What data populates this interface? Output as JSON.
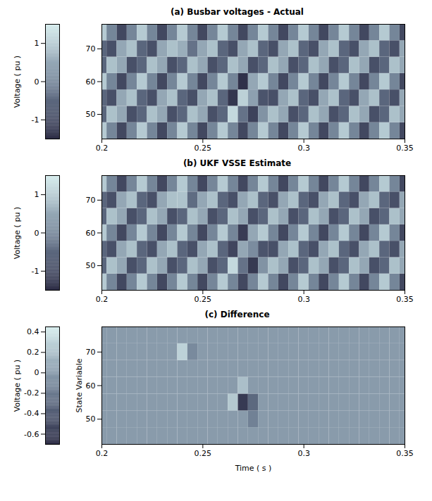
{
  "chart_data": [
    {
      "type": "heatmap",
      "title": "(a) Busbar voltages - Actual",
      "x": [
        0.2,
        0.205,
        0.21,
        0.215,
        0.22,
        0.225,
        0.23,
        0.235,
        0.24,
        0.245,
        0.25,
        0.255,
        0.26,
        0.265,
        0.27,
        0.275,
        0.28,
        0.285,
        0.29,
        0.295,
        0.3,
        0.305,
        0.31,
        0.315,
        0.32,
        0.325,
        0.33,
        0.335,
        0.34,
        0.345,
        0.35
      ],
      "y": [
        45,
        50,
        55,
        60,
        65,
        70,
        75
      ],
      "values": [
        [
          1,
          0,
          -1,
          0,
          1,
          0,
          -1,
          0,
          1,
          0,
          -1,
          0,
          1,
          0,
          -1,
          0,
          1,
          0,
          -1,
          0,
          1,
          0,
          -1,
          0,
          1,
          0,
          -1,
          0,
          1,
          0,
          -1
        ],
        [
          -0.5,
          0.87,
          0.5,
          -0.87,
          -0.5,
          0.87,
          0.5,
          -0.87,
          -0.5,
          0.87,
          0.5,
          -0.87,
          -0.5,
          1.2,
          -0.3,
          -1.1,
          0.2,
          0.87,
          0.5,
          -0.87,
          -0.5,
          0.87,
          0.5,
          -0.87,
          -0.5,
          0.87,
          0.5,
          -0.87,
          -0.5,
          0.87,
          0.5
        ],
        [
          -0.5,
          -0.87,
          0.5,
          0.87,
          -0.5,
          -0.87,
          0.5,
          0.87,
          -0.5,
          -0.87,
          0.5,
          0.87,
          -0.5,
          -1.3,
          1.1,
          0.4,
          -0.8,
          -0.87,
          0.5,
          0.87,
          -0.5,
          -0.87,
          0.5,
          0.87,
          -0.5,
          -0.87,
          0.5,
          0.87,
          -0.5,
          -0.87,
          0.5
        ],
        [
          1,
          0,
          -1,
          0,
          1,
          0,
          -1,
          0,
          1,
          0,
          -1,
          0,
          1,
          0,
          -1.4,
          0.5,
          1,
          0,
          -1,
          0,
          1,
          0,
          -1,
          0,
          1,
          0,
          -1,
          0,
          1,
          0,
          -1
        ],
        [
          -0.5,
          0.87,
          0.5,
          -0.87,
          -0.5,
          0.87,
          0.5,
          -0.87,
          -0.5,
          0.87,
          0.5,
          -0.87,
          -0.5,
          0.87,
          0.5,
          -0.87,
          -0.5,
          0.87,
          0.5,
          -0.87,
          -0.5,
          0.87,
          0.5,
          -0.87,
          -0.5,
          0.87,
          0.5,
          -0.87,
          -0.5,
          0.87,
          0.5
        ],
        [
          -0.5,
          -0.87,
          0.5,
          0.87,
          -0.5,
          -0.87,
          0.5,
          0.87,
          0.6,
          -0.3,
          0.5,
          0.87,
          -0.5,
          -0.87,
          0.5,
          0.87,
          -0.5,
          -0.87,
          0.5,
          0.87,
          -0.5,
          -0.87,
          0.5,
          0.87,
          -0.5,
          -0.87,
          0.5,
          0.87,
          -0.5,
          -0.87,
          0.5
        ],
        [
          1,
          0,
          -1,
          0,
          1,
          0,
          -1,
          0,
          1,
          0,
          -1,
          0,
          1,
          0,
          -1,
          0,
          1,
          0,
          -1,
          0,
          1,
          0,
          -1,
          0,
          1,
          0,
          -1,
          0,
          1,
          0,
          -1
        ]
      ],
      "xlim": [
        0.2,
        0.35
      ],
      "xticks": [
        0.2,
        0.25,
        0.3,
        0.35
      ],
      "ylim": [
        42.5,
        77.5
      ],
      "yticks": [
        50,
        60,
        70
      ],
      "colorbar": {
        "label": "Voltage ( pu )",
        "range": [
          -1.5,
          1.5
        ],
        "ticks": [
          -1,
          0,
          1
        ]
      }
    },
    {
      "type": "heatmap",
      "title": "(b) UKF VSSE Estimate",
      "x": [
        0.2,
        0.205,
        0.21,
        0.215,
        0.22,
        0.225,
        0.23,
        0.235,
        0.24,
        0.245,
        0.25,
        0.255,
        0.26,
        0.265,
        0.27,
        0.275,
        0.28,
        0.285,
        0.29,
        0.295,
        0.3,
        0.305,
        0.31,
        0.315,
        0.32,
        0.325,
        0.33,
        0.335,
        0.34,
        0.345,
        0.35
      ],
      "y": [
        45,
        50,
        55,
        60,
        65,
        70,
        75
      ],
      "values": [
        [
          1,
          0,
          -1,
          0,
          1,
          0,
          -1,
          0,
          1,
          0,
          -1,
          0,
          1,
          0,
          -1,
          0,
          1,
          0,
          -1,
          0,
          1,
          0,
          -1,
          0,
          1,
          0,
          -1,
          0,
          1,
          0,
          -1
        ],
        [
          -0.5,
          0.87,
          0.5,
          -0.87,
          -0.5,
          0.87,
          0.5,
          -0.87,
          -0.5,
          0.87,
          0.5,
          -0.87,
          -0.5,
          1.2,
          -0.3,
          -1.25,
          0.2,
          0.87,
          0.5,
          -0.87,
          -0.5,
          0.87,
          0.5,
          -0.87,
          -0.5,
          0.87,
          0.5,
          -0.87,
          -0.5,
          0.87,
          0.5
        ],
        [
          -0.5,
          -0.87,
          0.5,
          0.87,
          -0.5,
          -0.87,
          0.5,
          0.87,
          -0.5,
          -0.87,
          0.5,
          0.87,
          -0.5,
          -1.05,
          0.5,
          0.1,
          -0.8,
          -0.87,
          0.5,
          0.87,
          -0.5,
          -0.87,
          0.5,
          0.87,
          -0.5,
          -0.87,
          0.5,
          0.87,
          -0.5,
          -0.87,
          0.5
        ],
        [
          1,
          0,
          -1,
          0,
          1,
          0,
          -1,
          0,
          1,
          0,
          -1,
          0,
          1,
          0,
          -1.2,
          0.5,
          1,
          0,
          -1,
          0,
          1,
          0,
          -1,
          0,
          1,
          0,
          -1,
          0,
          1,
          0,
          -1
        ],
        [
          -0.5,
          0.87,
          0.5,
          -0.87,
          -0.5,
          0.87,
          0.5,
          -0.87,
          -0.5,
          0.87,
          0.5,
          -0.87,
          -0.5,
          0.87,
          0.5,
          -0.87,
          -0.5,
          0.87,
          0.5,
          -0.87,
          -0.5,
          0.87,
          0.5,
          -0.87,
          -0.5,
          0.87,
          0.5,
          -0.87,
          -0.5,
          0.87,
          0.5
        ],
        [
          -0.5,
          -0.87,
          0.5,
          0.87,
          -0.5,
          -0.87,
          0.5,
          0.87,
          0.9,
          -0.4,
          0.5,
          0.87,
          -0.5,
          -0.87,
          0.5,
          0.87,
          -0.5,
          -0.87,
          0.5,
          0.87,
          -0.5,
          -0.87,
          0.5,
          0.87,
          -0.5,
          -0.87,
          0.5,
          0.87,
          -0.5,
          -0.87,
          0.5
        ],
        [
          1,
          0,
          -1,
          0,
          1,
          0,
          -1,
          0,
          1,
          0,
          -1,
          0,
          1,
          0,
          -1,
          0,
          1,
          0,
          -1,
          0,
          1,
          0,
          -1,
          0,
          1,
          0,
          -1,
          0,
          1,
          0,
          -1
        ]
      ],
      "xlim": [
        0.2,
        0.35
      ],
      "xticks": [
        0.2,
        0.25,
        0.3,
        0.35
      ],
      "ylim": [
        42.5,
        77.5
      ],
      "yticks": [
        50,
        60,
        70
      ],
      "colorbar": {
        "label": "Voltage ( pu )",
        "range": [
          -1.5,
          1.5
        ],
        "ticks": [
          -1,
          0,
          1
        ]
      }
    },
    {
      "type": "heatmap",
      "title": "(c) Difference",
      "xlabel": "Time ( s )",
      "ylabel": "State Variable",
      "x": [
        0.2,
        0.205,
        0.21,
        0.215,
        0.22,
        0.225,
        0.23,
        0.235,
        0.24,
        0.245,
        0.25,
        0.255,
        0.26,
        0.265,
        0.27,
        0.275,
        0.28,
        0.285,
        0.29,
        0.295,
        0.3,
        0.305,
        0.31,
        0.315,
        0.32,
        0.325,
        0.33,
        0.335,
        0.34,
        0.345,
        0.35
      ],
      "y": [
        45,
        50,
        55,
        60,
        65,
        70,
        75
      ],
      "values": [
        [
          0,
          0,
          0,
          0,
          0,
          0,
          0,
          0,
          0,
          0,
          0,
          0,
          0,
          0,
          0,
          0,
          0,
          0,
          0,
          0,
          0,
          0,
          0,
          0,
          0,
          0,
          0,
          0,
          0,
          0,
          0
        ],
        [
          0,
          0,
          0,
          0,
          0,
          0,
          0,
          0,
          0,
          0,
          0,
          0,
          0,
          0,
          0,
          -0.15,
          0,
          0,
          0,
          0,
          0,
          0,
          0,
          0,
          0,
          0,
          0,
          0,
          0,
          0,
          0
        ],
        [
          0,
          0,
          0,
          0,
          0,
          0,
          0,
          0,
          0,
          0,
          0,
          0,
          0,
          0.25,
          -0.6,
          -0.3,
          0,
          0,
          0,
          0,
          0,
          0,
          0,
          0,
          0,
          0,
          0,
          0,
          0,
          0,
          0
        ],
        [
          0,
          0,
          0,
          0,
          0,
          0,
          0,
          0,
          0,
          0,
          0,
          0,
          0,
          0,
          0.2,
          0,
          0,
          0,
          0,
          0,
          0,
          0,
          0,
          0,
          0,
          0,
          0,
          0,
          0,
          0,
          0
        ],
        [
          0,
          0,
          0,
          0,
          0,
          0,
          0,
          0,
          0,
          0,
          0,
          0,
          0,
          0,
          0,
          0,
          0,
          0,
          0,
          0,
          0,
          0,
          0,
          0,
          0,
          0,
          0,
          0,
          0,
          0,
          0
        ],
        [
          0,
          0,
          0,
          0,
          0,
          0,
          0,
          0,
          0.3,
          -0.1,
          0,
          0,
          0,
          0,
          0,
          0,
          0,
          0,
          0,
          0,
          0,
          0,
          0,
          0,
          0,
          0,
          0,
          0,
          0,
          0,
          0
        ],
        [
          0,
          0,
          0,
          0,
          0,
          0,
          0,
          0,
          0,
          0,
          0,
          0,
          0,
          0,
          0,
          0,
          0,
          0,
          0,
          0,
          0,
          0,
          0,
          0,
          0,
          0,
          0,
          0,
          0,
          0,
          0
        ]
      ],
      "xlim": [
        0.2,
        0.35
      ],
      "xticks": [
        0.2,
        0.25,
        0.3,
        0.35
      ],
      "ylim": [
        42.5,
        77.5
      ],
      "yticks": [
        50,
        60,
        70
      ],
      "colorbar": {
        "label": "Voltage ( pu )",
        "range": [
          -0.7,
          0.45
        ],
        "ticks": [
          -0.6,
          -0.4,
          -0.2,
          0,
          0.2,
          0.4
        ]
      }
    }
  ]
}
